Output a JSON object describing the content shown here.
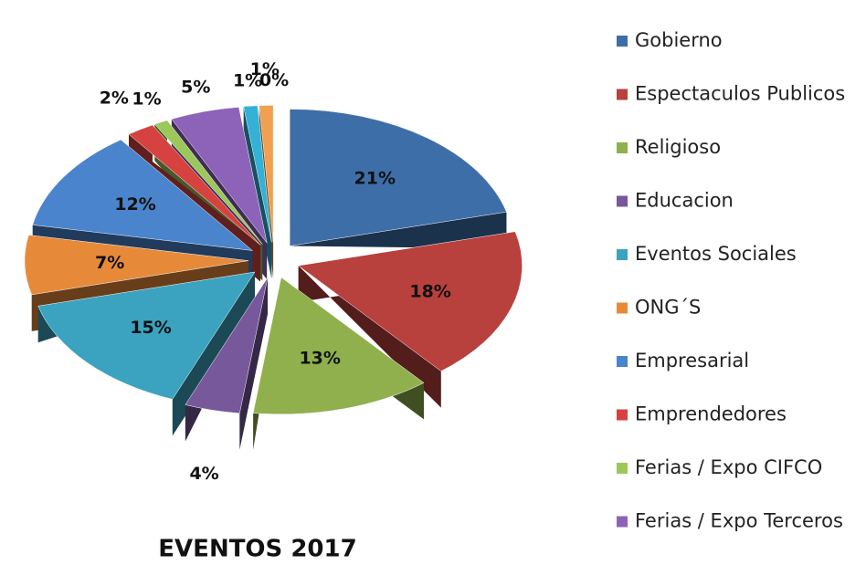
{
  "chart_data": {
    "type": "pie",
    "title": "EVENTOS 2017",
    "categories": [
      "Gobierno",
      "Espectaculos Publicos",
      "Religioso",
      "Educacion",
      "Eventos Sociales",
      "ONG´S",
      "Empresarial",
      "Emprendedores",
      "Ferias / Expo CIFCO",
      "Ferias / Expo Terceros",
      null,
      null,
      null
    ],
    "values": [
      21,
      18,
      13,
      4,
      15,
      7,
      12,
      2,
      1,
      5,
      1,
      1,
      0
    ],
    "value_labels": [
      "21%",
      "18%",
      "13%",
      "4%",
      "15%",
      "7%",
      "12%",
      "2%",
      "1%",
      "5%",
      "1%",
      "1%",
      "0%"
    ],
    "colors": [
      "#3d6ea8",
      "#b8403d",
      "#8fb04c",
      "#76589b",
      "#3ba3bf",
      "#e68a3a",
      "#4a84cc",
      "#d6423f",
      "#9cc75a",
      "#8d63b9",
      "#33b1d6",
      "#f0a050",
      "#f0a050"
    ],
    "legend": "right"
  }
}
